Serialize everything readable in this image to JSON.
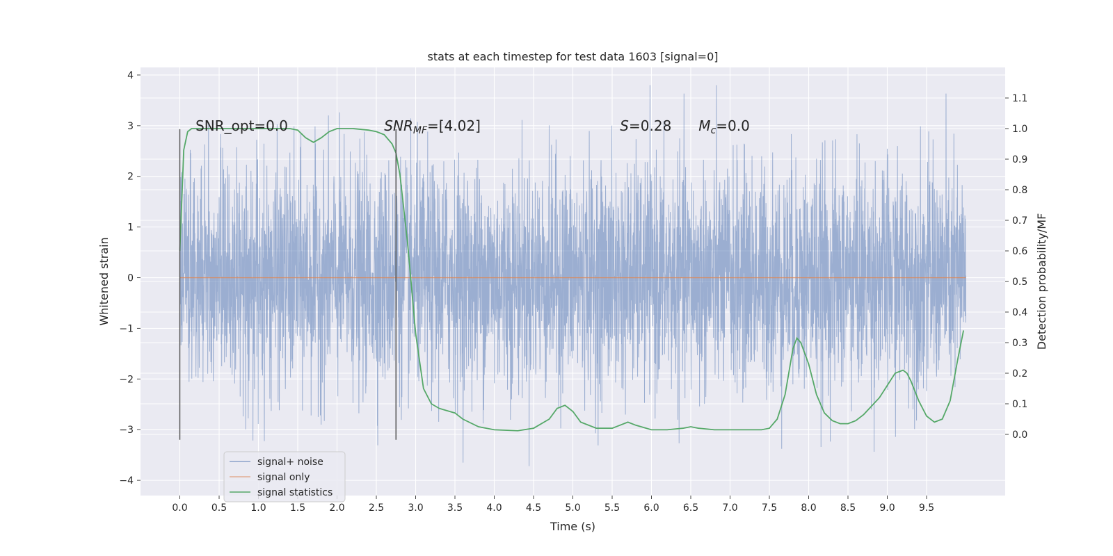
{
  "chart_data": {
    "type": "line",
    "title": "stats at each timestep for test data 1603 [signal=0]",
    "xlabel": "Time (s)",
    "ylabel": "Whitened strain",
    "y2label": "Detection probability/MF",
    "xlim": [
      -0.5,
      10.5
    ],
    "ylim": [
      -4.3,
      4.15
    ],
    "y2lim": [
      -0.2,
      1.2
    ],
    "xticks": [
      "0.0",
      "0.5",
      "1.0",
      "1.5",
      "2.0",
      "2.5",
      "3.0",
      "3.5",
      "4.0",
      "4.5",
      "5.0",
      "5.5",
      "6.0",
      "6.5",
      "7.0",
      "7.5",
      "8.0",
      "8.5",
      "9.0",
      "9.5"
    ],
    "yticks": [
      "−4",
      "−3",
      "−2",
      "−1",
      "0",
      "1",
      "2",
      "3",
      "4"
    ],
    "y2ticks": [
      "0.0",
      "0.1",
      "0.2",
      "0.3",
      "0.4",
      "0.5",
      "0.6",
      "0.7",
      "0.8",
      "0.9",
      "1.0",
      "1.1"
    ],
    "background": "#eaeaf2",
    "grid": true,
    "legend_position": "lower-left",
    "annotations": [
      {
        "text": "SNR_opt=0.0",
        "x": 0.2,
        "y": 3.0
      },
      {
        "text": "SNR",
        "sub": "MF",
        "suffix": "=[4.02]",
        "italic": true,
        "x": 2.6,
        "y": 3.0
      },
      {
        "text": "S",
        "suffix": "=0.28",
        "italic": true,
        "x": 5.6,
        "y": 3.0
      },
      {
        "text": "M",
        "sub": "c",
        "suffix": "=0.0",
        "italic": true,
        "x": 6.6,
        "y": 3.0
      }
    ],
    "vlines": [
      {
        "x": 0.0,
        "y": [
          -3.2,
          2.93
        ]
      },
      {
        "x": 2.75,
        "y": [
          -3.2,
          2.93
        ]
      }
    ],
    "noise": {
      "x_start": 0.0,
      "x_end": 10.0,
      "mean": 0.0,
      "std": 1.0,
      "peak_max": 3.8,
      "peak_min": -4.05,
      "color": "#4c72b0"
    },
    "series": [
      {
        "name": "signal+ noise",
        "color": "#4c72b0",
        "axis": "left"
      },
      {
        "name": "signal only",
        "color": "#dd8452",
        "axis": "left",
        "x": [
          0.0,
          10.0
        ],
        "y": [
          0.0,
          0.0
        ]
      },
      {
        "name": "signal statistics",
        "color": "#55a868",
        "axis": "right",
        "x": [
          0.0,
          0.05,
          0.1,
          0.15,
          0.2,
          0.3,
          0.5,
          0.8,
          1.0,
          1.2,
          1.4,
          1.5,
          1.6,
          1.7,
          1.8,
          1.9,
          2.0,
          2.1,
          2.2,
          2.4,
          2.5,
          2.6,
          2.7,
          2.75,
          2.8,
          2.9,
          3.0,
          3.1,
          3.2,
          3.3,
          3.5,
          3.6,
          3.8,
          4.0,
          4.3,
          4.5,
          4.7,
          4.8,
          4.9,
          5.0,
          5.1,
          5.3,
          5.5,
          5.6,
          5.7,
          5.8,
          6.0,
          6.2,
          6.4,
          6.5,
          6.6,
          6.8,
          7.0,
          7.2,
          7.4,
          7.5,
          7.6,
          7.7,
          7.8,
          7.85,
          7.9,
          8.0,
          8.1,
          8.2,
          8.3,
          8.4,
          8.5,
          8.6,
          8.7,
          8.9,
          9.0,
          9.1,
          9.2,
          9.25,
          9.3,
          9.4,
          9.5,
          9.6,
          9.7,
          9.8,
          9.9,
          9.97
        ],
        "y": [
          0.6,
          0.93,
          0.99,
          1.0,
          1.0,
          1.0,
          1.0,
          1.0,
          1.0,
          1.0,
          1.0,
          0.995,
          0.97,
          0.955,
          0.97,
          0.99,
          1.0,
          1.0,
          1.0,
          0.995,
          0.99,
          0.98,
          0.95,
          0.92,
          0.85,
          0.62,
          0.33,
          0.15,
          0.1,
          0.085,
          0.07,
          0.05,
          0.025,
          0.015,
          0.012,
          0.02,
          0.05,
          0.085,
          0.095,
          0.075,
          0.04,
          0.02,
          0.02,
          0.03,
          0.04,
          0.03,
          0.015,
          0.015,
          0.02,
          0.025,
          0.02,
          0.015,
          0.015,
          0.015,
          0.015,
          0.02,
          0.05,
          0.13,
          0.28,
          0.315,
          0.3,
          0.23,
          0.13,
          0.07,
          0.045,
          0.035,
          0.035,
          0.045,
          0.065,
          0.12,
          0.16,
          0.2,
          0.21,
          0.2,
          0.175,
          0.11,
          0.06,
          0.04,
          0.05,
          0.11,
          0.25,
          0.34
        ]
      }
    ]
  }
}
